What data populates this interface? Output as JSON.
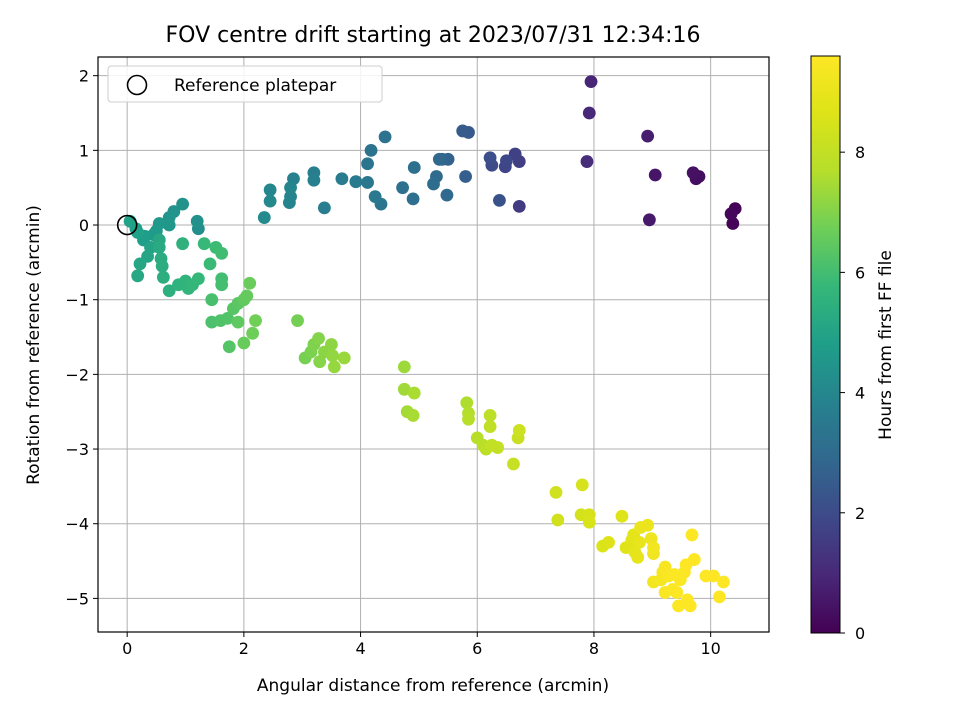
{
  "chart_data": {
    "type": "scatter",
    "title": "FOV centre drift starting at 2023/07/31 12:34:16",
    "xlabel": "Angular distance from reference (arcmin)",
    "ylabel": "Rotation from reference (arcmin)",
    "xlim": [
      -0.5,
      11.0
    ],
    "ylim": [
      -5.45,
      2.25
    ],
    "xticks": [
      0,
      2,
      4,
      6,
      8,
      10
    ],
    "yticks": [
      -5,
      -4,
      -3,
      -2,
      -1,
      0,
      1,
      2
    ],
    "grid": true,
    "legend": {
      "position": "top-left",
      "entries": [
        "Reference platepar"
      ]
    },
    "reference_point": {
      "x": 0,
      "y": 0
    },
    "colormap": "viridis",
    "colorbar": {
      "label": "Hours from first FF file",
      "range": [
        0,
        9.6
      ],
      "ticks": [
        0,
        2,
        4,
        6,
        8
      ]
    },
    "points": [
      [
        10.38,
        0.02,
        0.05
      ],
      [
        10.42,
        0.22,
        0.1
      ],
      [
        10.35,
        0.15,
        0.15
      ],
      [
        9.75,
        0.62,
        0.3
      ],
      [
        9.8,
        0.65,
        0.35
      ],
      [
        9.7,
        0.7,
        0.4
      ],
      [
        9.05,
        0.67,
        0.5
      ],
      [
        8.95,
        0.07,
        0.6
      ],
      [
        8.92,
        1.19,
        0.7
      ],
      [
        7.95,
        1.92,
        0.9
      ],
      [
        7.92,
        1.5,
        1.0
      ],
      [
        7.88,
        0.85,
        1.1
      ],
      [
        6.72,
        0.25,
        1.5
      ],
      [
        6.72,
        0.85,
        1.6
      ],
      [
        6.65,
        0.95,
        1.7
      ],
      [
        6.48,
        0.78,
        1.8
      ],
      [
        6.5,
        0.86,
        1.9
      ],
      [
        6.25,
        0.8,
        2.0
      ],
      [
        6.22,
        0.9,
        2.1
      ],
      [
        6.38,
        0.33,
        2.2
      ],
      [
        5.85,
        1.24,
        2.4
      ],
      [
        5.75,
        1.26,
        2.5
      ],
      [
        5.8,
        0.65,
        2.6
      ],
      [
        5.5,
        0.88,
        2.7
      ],
      [
        5.4,
        0.88,
        2.8
      ],
      [
        5.35,
        0.88,
        2.9
      ],
      [
        5.48,
        0.4,
        2.95
      ],
      [
        5.3,
        0.65,
        3.0
      ],
      [
        5.25,
        0.55,
        3.05
      ],
      [
        4.9,
        0.35,
        3.1
      ],
      [
        4.92,
        0.77,
        3.15
      ],
      [
        4.72,
        0.5,
        3.2
      ],
      [
        4.42,
        1.18,
        3.25
      ],
      [
        4.18,
        1.0,
        3.3
      ],
      [
        4.12,
        0.82,
        3.35
      ],
      [
        4.35,
        0.28,
        3.4
      ],
      [
        4.12,
        0.57,
        3.45
      ],
      [
        4.25,
        0.38,
        3.5
      ],
      [
        3.92,
        0.58,
        3.55
      ],
      [
        3.68,
        0.62,
        3.6
      ],
      [
        3.38,
        0.23,
        3.65
      ],
      [
        3.2,
        0.7,
        3.7
      ],
      [
        3.2,
        0.6,
        3.75
      ],
      [
        2.85,
        0.62,
        3.8
      ],
      [
        2.8,
        0.38,
        3.85
      ],
      [
        2.78,
        0.3,
        3.9
      ],
      [
        2.8,
        0.5,
        3.95
      ],
      [
        2.45,
        0.47,
        4.0
      ],
      [
        2.45,
        0.32,
        4.05
      ],
      [
        2.35,
        0.1,
        4.1
      ],
      [
        1.22,
        -0.05,
        4.3
      ],
      [
        1.2,
        0.05,
        4.35
      ],
      [
        0.95,
        0.28,
        4.4
      ],
      [
        0.8,
        0.18,
        4.45
      ],
      [
        0.72,
        0.1,
        4.5
      ],
      [
        0.72,
        0.0,
        4.55
      ],
      [
        0.55,
        0.02,
        4.6
      ],
      [
        0.5,
        -0.08,
        4.65
      ],
      [
        0.45,
        -0.13,
        4.7
      ],
      [
        0.3,
        -0.15,
        4.75
      ],
      [
        0.28,
        -0.2,
        4.8
      ],
      [
        0.15,
        -0.05,
        4.85
      ],
      [
        0.18,
        -0.1,
        4.9
      ],
      [
        0.05,
        0.05,
        4.95
      ],
      [
        0.4,
        -0.3,
        5.0
      ],
      [
        0.35,
        -0.42,
        5.05
      ],
      [
        0.22,
        -0.52,
        5.1
      ],
      [
        0.18,
        -0.68,
        5.15
      ],
      [
        0.55,
        -0.2,
        5.2
      ],
      [
        0.55,
        -0.3,
        5.25
      ],
      [
        0.58,
        -0.45,
        5.3
      ],
      [
        0.6,
        -0.55,
        5.35
      ],
      [
        0.62,
        -0.7,
        5.4
      ],
      [
        0.72,
        -0.88,
        5.45
      ],
      [
        0.95,
        -0.25,
        5.5
      ],
      [
        0.88,
        -0.8,
        5.55
      ],
      [
        1.0,
        -0.75,
        5.6
      ],
      [
        1.05,
        -0.85,
        5.65
      ],
      [
        1.12,
        -0.8,
        5.7
      ],
      [
        1.22,
        -0.72,
        5.75
      ],
      [
        1.32,
        -0.25,
        5.8
      ],
      [
        1.42,
        -0.52,
        5.85
      ],
      [
        1.52,
        -0.3,
        5.9
      ],
      [
        1.62,
        -0.38,
        5.95
      ],
      [
        1.62,
        -0.72,
        6.0
      ],
      [
        1.62,
        -0.8,
        6.05
      ],
      [
        1.45,
        -1.0,
        6.1
      ],
      [
        1.45,
        -1.3,
        6.15
      ],
      [
        1.6,
        -1.28,
        6.2
      ],
      [
        1.72,
        -1.25,
        6.25
      ],
      [
        1.75,
        -1.63,
        6.3
      ],
      [
        1.82,
        -1.12,
        6.35
      ],
      [
        1.9,
        -1.05,
        6.4
      ],
      [
        1.9,
        -1.3,
        6.45
      ],
      [
        2.0,
        -1.0,
        6.5
      ],
      [
        2.05,
        -0.95,
        6.55
      ],
      [
        2.0,
        -1.58,
        6.6
      ],
      [
        2.1,
        -0.78,
        6.65
      ],
      [
        2.15,
        -1.45,
        6.7
      ],
      [
        2.2,
        -1.28,
        6.75
      ],
      [
        2.92,
        -1.28,
        6.8
      ],
      [
        3.05,
        -1.78,
        6.85
      ],
      [
        3.15,
        -1.7,
        6.9
      ],
      [
        3.2,
        -1.6,
        6.95
      ],
      [
        3.28,
        -1.52,
        7.0
      ],
      [
        3.3,
        -1.83,
        7.05
      ],
      [
        3.38,
        -1.7,
        7.1
      ],
      [
        3.5,
        -1.6,
        7.15
      ],
      [
        3.52,
        -1.75,
        7.2
      ],
      [
        3.55,
        -1.9,
        7.25
      ],
      [
        3.72,
        -1.78,
        7.3
      ],
      [
        4.75,
        -1.9,
        7.35
      ],
      [
        4.75,
        -2.2,
        7.4
      ],
      [
        4.8,
        -2.5,
        7.45
      ],
      [
        4.9,
        -2.55,
        7.5
      ],
      [
        4.92,
        -2.25,
        7.55
      ],
      [
        5.82,
        -2.38,
        7.6
      ],
      [
        5.85,
        -2.52,
        7.65
      ],
      [
        5.85,
        -2.6,
        7.7
      ],
      [
        6.0,
        -2.85,
        7.75
      ],
      [
        6.1,
        -2.95,
        7.8
      ],
      [
        6.15,
        -3.0,
        7.85
      ],
      [
        6.22,
        -2.55,
        7.9
      ],
      [
        6.22,
        -2.7,
        7.95
      ],
      [
        6.25,
        -2.95,
        8.0
      ],
      [
        6.35,
        -2.98,
        8.05
      ],
      [
        6.62,
        -3.2,
        8.1
      ],
      [
        6.7,
        -2.85,
        8.15
      ],
      [
        6.72,
        -2.75,
        8.2
      ],
      [
        7.35,
        -3.58,
        8.3
      ],
      [
        7.38,
        -3.95,
        8.35
      ],
      [
        7.78,
        -3.88,
        8.4
      ],
      [
        7.8,
        -3.48,
        8.45
      ],
      [
        7.92,
        -3.88,
        8.5
      ],
      [
        7.92,
        -3.98,
        8.55
      ],
      [
        8.15,
        -4.3,
        8.6
      ],
      [
        8.25,
        -4.25,
        8.65
      ],
      [
        8.48,
        -3.9,
        8.7
      ],
      [
        8.55,
        -4.32,
        8.75
      ],
      [
        8.65,
        -4.22,
        8.8
      ],
      [
        8.68,
        -4.15,
        8.85
      ],
      [
        8.7,
        -4.38,
        8.9
      ],
      [
        8.75,
        -4.45,
        8.95
      ],
      [
        8.78,
        -4.25,
        9.0
      ],
      [
        8.8,
        -4.05,
        9.05
      ],
      [
        8.92,
        -4.02,
        9.1
      ],
      [
        8.98,
        -4.2,
        9.15
      ],
      [
        9.02,
        -4.4,
        9.2
      ],
      [
        9.02,
        -4.32,
        9.25
      ],
      [
        9.02,
        -4.78,
        9.3
      ],
      [
        9.15,
        -4.75,
        9.35
      ],
      [
        9.18,
        -4.65,
        9.4
      ],
      [
        9.22,
        -4.58,
        9.45
      ],
      [
        9.22,
        -4.92,
        9.5
      ],
      [
        9.28,
        -4.7,
        9.52
      ],
      [
        9.35,
        -4.88,
        9.54
      ],
      [
        9.38,
        -4.68,
        9.55
      ],
      [
        9.42,
        -4.92,
        9.56
      ],
      [
        9.45,
        -5.1,
        9.57
      ],
      [
        9.48,
        -4.75,
        9.58
      ],
      [
        9.55,
        -4.65,
        9.58
      ],
      [
        9.58,
        -4.55,
        9.59
      ],
      [
        9.6,
        -5.02,
        9.59
      ],
      [
        9.65,
        -5.1,
        9.6
      ],
      [
        9.68,
        -4.15,
        9.6
      ],
      [
        9.72,
        -4.48,
        9.6
      ],
      [
        9.92,
        -4.7,
        9.6
      ],
      [
        10.05,
        -4.7,
        9.6
      ],
      [
        10.15,
        -4.98,
        9.6
      ],
      [
        10.22,
        -4.78,
        9.6
      ]
    ]
  }
}
